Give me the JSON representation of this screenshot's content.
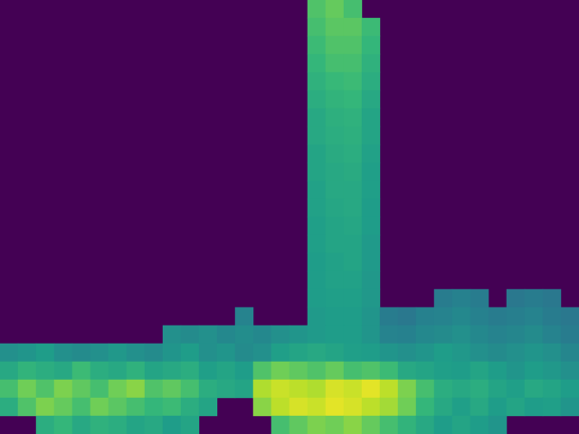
{
  "chart_data": {
    "type": "heatmap",
    "tick_labels": false,
    "zlim": [
      0,
      1
    ],
    "z": [
      [
        null,
        null,
        null,
        null,
        null,
        null,
        null,
        null,
        null,
        null,
        null,
        null,
        null,
        null,
        null,
        null,
        null,
        0.72,
        0.76,
        0.7,
        null,
        null,
        null,
        null,
        null,
        null,
        null,
        null,
        null,
        null,
        null,
        null
      ],
      [
        null,
        null,
        null,
        null,
        null,
        null,
        null,
        null,
        null,
        null,
        null,
        null,
        null,
        null,
        null,
        null,
        null,
        0.7,
        0.74,
        0.74,
        0.68,
        null,
        null,
        null,
        null,
        null,
        null,
        null,
        null,
        null,
        null,
        null
      ],
      [
        null,
        null,
        null,
        null,
        null,
        null,
        null,
        null,
        null,
        null,
        null,
        null,
        null,
        null,
        null,
        null,
        null,
        0.68,
        0.72,
        0.72,
        0.66,
        null,
        null,
        null,
        null,
        null,
        null,
        null,
        null,
        null,
        null,
        null
      ],
      [
        null,
        null,
        null,
        null,
        null,
        null,
        null,
        null,
        null,
        null,
        null,
        null,
        null,
        null,
        null,
        null,
        null,
        0.66,
        0.7,
        0.7,
        0.64,
        null,
        null,
        null,
        null,
        null,
        null,
        null,
        null,
        null,
        null,
        null
      ],
      [
        null,
        null,
        null,
        null,
        null,
        null,
        null,
        null,
        null,
        null,
        null,
        null,
        null,
        null,
        null,
        null,
        null,
        0.64,
        0.67,
        0.68,
        0.62,
        null,
        null,
        null,
        null,
        null,
        null,
        null,
        null,
        null,
        null,
        null
      ],
      [
        null,
        null,
        null,
        null,
        null,
        null,
        null,
        null,
        null,
        null,
        null,
        null,
        null,
        null,
        null,
        null,
        null,
        0.62,
        0.65,
        0.66,
        0.6,
        null,
        null,
        null,
        null,
        null,
        null,
        null,
        null,
        null,
        null,
        null
      ],
      [
        null,
        null,
        null,
        null,
        null,
        null,
        null,
        null,
        null,
        null,
        null,
        null,
        null,
        null,
        null,
        null,
        null,
        0.6,
        0.63,
        0.64,
        0.58,
        null,
        null,
        null,
        null,
        null,
        null,
        null,
        null,
        null,
        null,
        null
      ],
      [
        null,
        null,
        null,
        null,
        null,
        null,
        null,
        null,
        null,
        null,
        null,
        null,
        null,
        null,
        null,
        null,
        null,
        0.6,
        0.62,
        0.63,
        0.58,
        null,
        null,
        null,
        null,
        null,
        null,
        null,
        null,
        null,
        null,
        null
      ],
      [
        null,
        null,
        null,
        null,
        null,
        null,
        null,
        null,
        null,
        null,
        null,
        null,
        null,
        null,
        null,
        null,
        null,
        0.58,
        0.61,
        0.62,
        0.57,
        null,
        null,
        null,
        null,
        null,
        null,
        null,
        null,
        null,
        null,
        null
      ],
      [
        null,
        null,
        null,
        null,
        null,
        null,
        null,
        null,
        null,
        null,
        null,
        null,
        null,
        null,
        null,
        null,
        null,
        0.58,
        0.6,
        0.61,
        0.56,
        null,
        null,
        null,
        null,
        null,
        null,
        null,
        null,
        null,
        null,
        null
      ],
      [
        null,
        null,
        null,
        null,
        null,
        null,
        null,
        null,
        null,
        null,
        null,
        null,
        null,
        null,
        null,
        null,
        null,
        0.57,
        0.6,
        0.6,
        0.56,
        null,
        null,
        null,
        null,
        null,
        null,
        null,
        null,
        null,
        null,
        null
      ],
      [
        null,
        null,
        null,
        null,
        null,
        null,
        null,
        null,
        null,
        null,
        null,
        null,
        null,
        null,
        null,
        null,
        null,
        0.57,
        0.59,
        0.6,
        0.55,
        null,
        null,
        null,
        null,
        null,
        null,
        null,
        null,
        null,
        null,
        null
      ],
      [
        null,
        null,
        null,
        null,
        null,
        null,
        null,
        null,
        null,
        null,
        null,
        null,
        null,
        null,
        null,
        null,
        null,
        0.56,
        0.58,
        0.59,
        0.55,
        null,
        null,
        null,
        null,
        null,
        null,
        null,
        null,
        null,
        null,
        null
      ],
      [
        null,
        null,
        null,
        null,
        null,
        null,
        null,
        null,
        null,
        null,
        null,
        null,
        null,
        null,
        null,
        null,
        null,
        0.56,
        0.58,
        0.58,
        0.54,
        null,
        null,
        null,
        null,
        null,
        null,
        null,
        null,
        null,
        null,
        null
      ],
      [
        null,
        null,
        null,
        null,
        null,
        null,
        null,
        null,
        null,
        null,
        null,
        null,
        null,
        null,
        null,
        null,
        null,
        0.55,
        0.57,
        0.58,
        0.54,
        null,
        null,
        null,
        null,
        null,
        null,
        null,
        null,
        null,
        null,
        null
      ],
      [
        null,
        null,
        null,
        null,
        null,
        null,
        null,
        null,
        null,
        null,
        null,
        null,
        null,
        null,
        null,
        null,
        null,
        0.55,
        0.57,
        0.57,
        0.53,
        null,
        null,
        null,
        null,
        null,
        null,
        null,
        null,
        null,
        null,
        null
      ],
      [
        null,
        null,
        null,
        null,
        null,
        null,
        null,
        null,
        null,
        null,
        null,
        null,
        null,
        null,
        null,
        null,
        null,
        0.55,
        0.56,
        0.56,
        0.53,
        null,
        null,
        null,
        0.42,
        0.44,
        0.42,
        null,
        0.4,
        0.42,
        0.4,
        null
      ],
      [
        null,
        null,
        null,
        null,
        null,
        null,
        null,
        null,
        null,
        null,
        null,
        null,
        null,
        0.45,
        null,
        null,
        null,
        0.54,
        0.55,
        0.55,
        0.52,
        0.42,
        0.4,
        0.44,
        0.45,
        0.47,
        0.44,
        0.42,
        0.43,
        0.45,
        0.42,
        0.4
      ],
      [
        null,
        null,
        null,
        null,
        null,
        null,
        null,
        null,
        null,
        0.5,
        0.48,
        0.5,
        0.47,
        0.49,
        0.47,
        0.5,
        0.52,
        0.54,
        0.55,
        0.55,
        0.52,
        0.45,
        0.44,
        0.47,
        0.48,
        0.5,
        0.47,
        0.45,
        0.46,
        0.48,
        0.45,
        0.42
      ],
      [
        0.5,
        0.52,
        0.55,
        0.5,
        0.48,
        0.5,
        0.53,
        0.5,
        0.48,
        0.52,
        0.55,
        0.5,
        0.52,
        0.48,
        0.5,
        0.56,
        0.58,
        0.6,
        0.58,
        0.56,
        0.55,
        0.52,
        0.5,
        0.52,
        0.55,
        0.53,
        0.5,
        0.48,
        0.5,
        0.52,
        0.5,
        0.46
      ],
      [
        0.6,
        0.65,
        0.62,
        0.6,
        0.68,
        0.62,
        0.6,
        0.64,
        0.58,
        0.6,
        0.62,
        0.56,
        0.58,
        0.55,
        0.72,
        0.78,
        0.75,
        0.72,
        0.76,
        0.7,
        0.72,
        0.68,
        0.6,
        0.58,
        0.56,
        0.55,
        0.58,
        0.55,
        0.52,
        0.55,
        0.53,
        0.5
      ],
      [
        0.7,
        0.78,
        0.72,
        0.8,
        0.75,
        0.7,
        0.78,
        0.82,
        0.72,
        0.75,
        0.7,
        0.62,
        0.6,
        0.58,
        0.88,
        0.92,
        0.9,
        0.88,
        0.94,
        0.92,
        0.96,
        0.9,
        0.8,
        0.7,
        0.62,
        0.6,
        0.62,
        0.58,
        0.56,
        0.6,
        0.58,
        0.55
      ],
      [
        0.62,
        0.72,
        0.8,
        0.76,
        0.7,
        0.78,
        0.74,
        0.7,
        0.66,
        0.68,
        0.62,
        0.58,
        null,
        null,
        0.82,
        0.9,
        0.94,
        0.92,
        0.96,
        0.94,
        0.9,
        0.86,
        0.78,
        0.66,
        0.6,
        0.56,
        0.6,
        0.55,
        0.58,
        0.55,
        0.56,
        0.52
      ],
      [
        null,
        null,
        0.62,
        0.66,
        0.6,
        0.64,
        0.62,
        0.58,
        0.6,
        0.55,
        0.58,
        null,
        null,
        null,
        null,
        0.7,
        0.75,
        0.8,
        0.78,
        0.82,
        0.76,
        0.7,
        0.65,
        0.6,
        0.55,
        0.58,
        0.55,
        0.52,
        null,
        null,
        null,
        null
      ]
    ]
  }
}
